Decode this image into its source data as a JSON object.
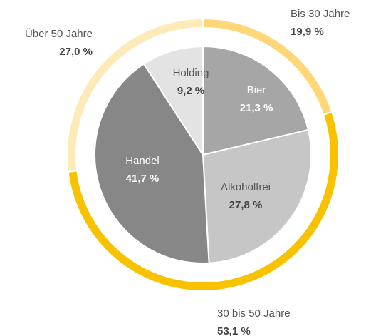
{
  "chart_data": [
    {
      "type": "pie",
      "categories": [
        "Bier",
        "Alkoholfrei",
        "Handel",
        "Holding"
      ],
      "values": [
        21.3,
        27.8,
        41.7,
        9.2
      ],
      "value_labels": [
        "21,3 %",
        "27,8 %",
        "41,7 %",
        "9,2 %"
      ],
      "colors": [
        "#a6a6a6",
        "#c6c6c6",
        "#878787",
        "#e3e3e3"
      ]
    },
    {
      "type": "donut",
      "categories": [
        "Bis 30 Jahre",
        "30 bis 50 Jahre",
        "Über 50 Jahre"
      ],
      "values": [
        19.9,
        53.1,
        27.0
      ],
      "value_labels": [
        "19,9 %",
        "53,1 %",
        "27,0 %"
      ],
      "colors": [
        "#ffd778",
        "#f9c200",
        "#fdeab8"
      ]
    }
  ]
}
